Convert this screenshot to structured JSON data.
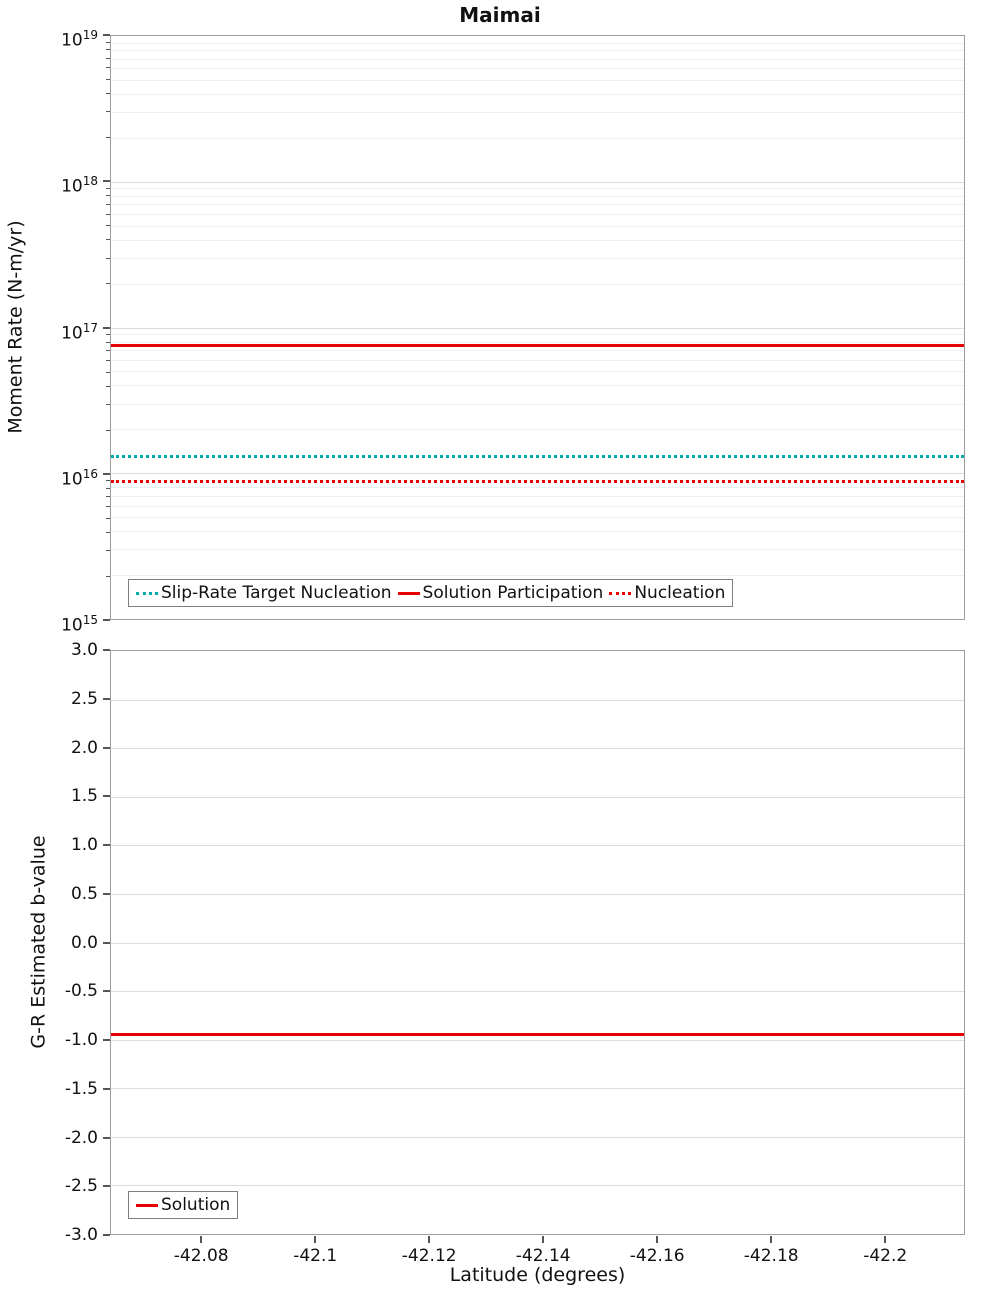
{
  "title": "Maimai",
  "colors": {
    "red": "#e60000",
    "teal": "#00a9a9",
    "grid_major": "#dcdcdc",
    "grid_minor": "#efefef",
    "plot_border": "#9c9c9c"
  },
  "chart_data": [
    {
      "type": "line",
      "title": "Maimai",
      "ylabel": "Moment Rate (N-m/yr)",
      "yscale": "log10",
      "ylim": [
        1000000000000000.0,
        1e+19
      ],
      "ytick_exponents": [
        19,
        18,
        17,
        16,
        15
      ],
      "grid": true,
      "legend_position": "bottom-left-inside",
      "x_range": [
        -42.064,
        -42.214
      ],
      "series": [
        {
          "name": "Slip-Rate Target Nucleation",
          "color": "#00a9a9",
          "line_style": "dotted",
          "constant_value": 1.3e+16
        },
        {
          "name": "Solution Participation",
          "color": "#e60000",
          "line_style": "solid",
          "constant_value": 7.5e+16
        },
        {
          "name": "Nucleation",
          "color": "#e60000",
          "line_style": "dotted",
          "constant_value": 8800000000000000.0
        }
      ]
    },
    {
      "type": "line",
      "ylabel": "G-R Estimated b-value",
      "xlabel": "Latitude (degrees)",
      "ylim": [
        -3.0,
        3.0
      ],
      "grid": true,
      "legend_position": "bottom-left-inside",
      "yticks": [
        {
          "v": 3.0,
          "label": "3.0"
        },
        {
          "v": 2.5,
          "label": "2.5"
        },
        {
          "v": 2.0,
          "label": "2.0"
        },
        {
          "v": 1.5,
          "label": "1.5"
        },
        {
          "v": 1.0,
          "label": "1.0"
        },
        {
          "v": 0.5,
          "label": "0.5"
        },
        {
          "v": 0.0,
          "label": "0.0"
        },
        {
          "v": -0.5,
          "label": "-0.5"
        },
        {
          "v": -1.0,
          "label": "-1.0"
        },
        {
          "v": -1.5,
          "label": "-1.5"
        },
        {
          "v": -2.0,
          "label": "-2.0"
        },
        {
          "v": -2.5,
          "label": "-2.5"
        },
        {
          "v": -3.0,
          "label": "-3.0"
        }
      ],
      "xlim": [
        -42.064,
        -42.214
      ],
      "xticks": [
        {
          "v": -42.08,
          "label": "-42.08"
        },
        {
          "v": -42.1,
          "label": "-42.1"
        },
        {
          "v": -42.12,
          "label": "-42.12"
        },
        {
          "v": -42.14,
          "label": "-42.14"
        },
        {
          "v": -42.16,
          "label": "-42.16"
        },
        {
          "v": -42.18,
          "label": "-42.18"
        },
        {
          "v": -42.2,
          "label": "-42.2"
        }
      ],
      "series": [
        {
          "name": "Solution",
          "color": "#e60000",
          "line_style": "solid",
          "constant_value": -0.95
        }
      ]
    }
  ]
}
